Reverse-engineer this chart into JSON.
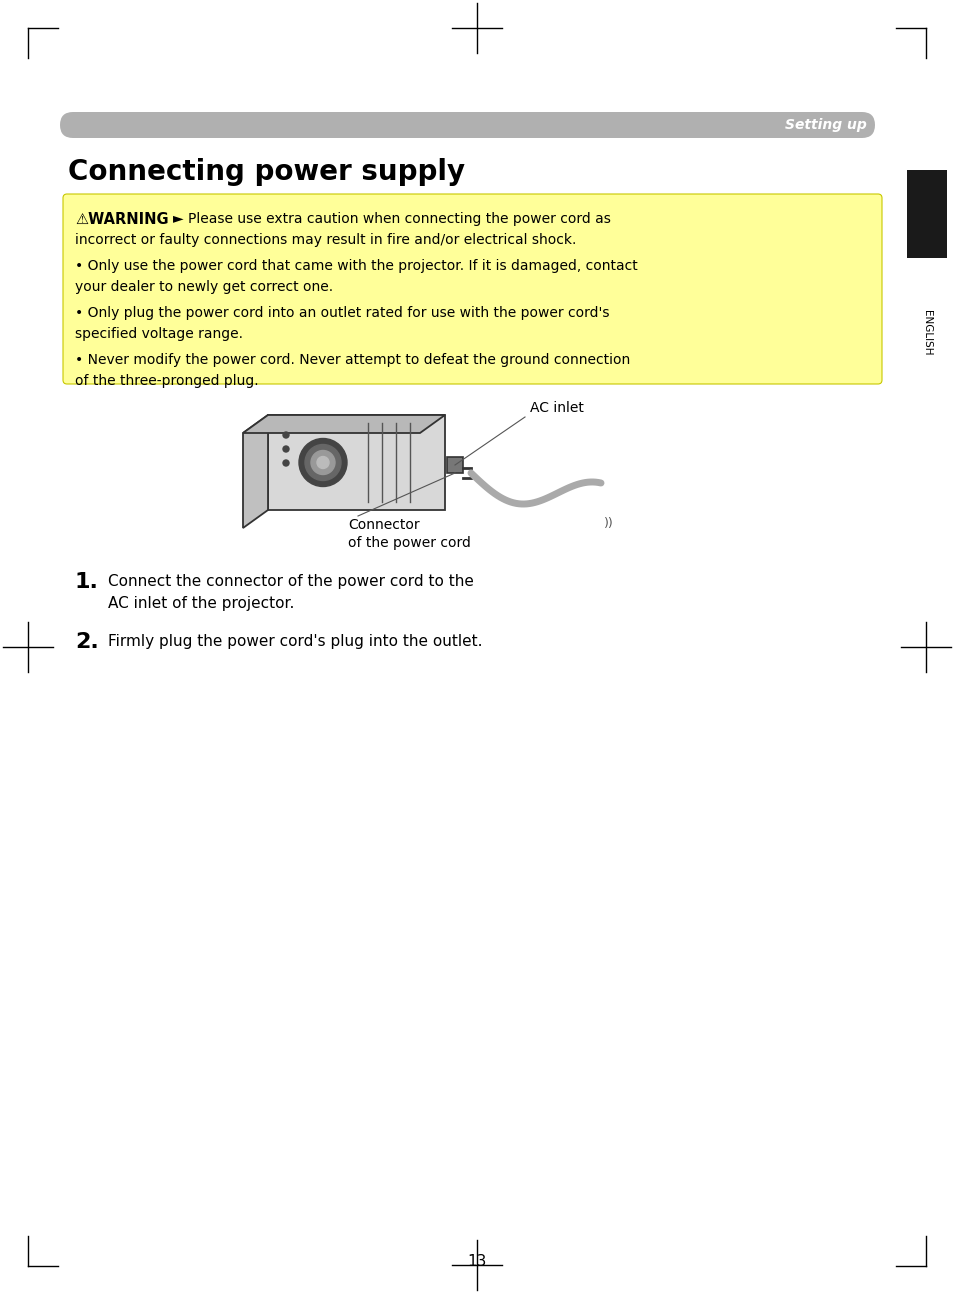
{
  "page_bg": "#ffffff",
  "header_bar_color": "#b0b0b0",
  "header_text": "Setting up",
  "header_text_color": "#ffffff",
  "title": "Connecting power supply",
  "title_color": "#000000",
  "warning_bg": "#ffff99",
  "warning_border": "#cccc00",
  "warning_label": "⚠WARNING",
  "warning_label_color": "#000000",
  "warning_arrow": "►",
  "warning_line1": "Please use extra caution when connecting the power cord as",
  "warning_line2": "incorrect or faulty connections may result in fire and/or electrical shock.",
  "warning_line3": "• Only use the power cord that came with the projector. If it is damaged, contact",
  "warning_line4": "your dealer to newly get correct one.",
  "warning_line5": "• Only plug the power cord into an outlet rated for use with the power cord's",
  "warning_line6": "specified voltage range.",
  "warning_line7": "• Never modify the power cord. Never attempt to defeat the ground connection",
  "warning_line8": "of the three-pronged plug.",
  "step1_num": "1.",
  "step1_text_line1": "Connect the connector of the power cord to the",
  "step1_text_line2": "AC inlet of the projector.",
  "step2_num": "2.",
  "step2_text": "Firmly plug the power cord's plug into the outlet.",
  "ac_inlet_label": "AC inlet",
  "connector_label_line1": "Connector",
  "connector_label_line2": "of the power cord",
  "side_label": "ENGLISH",
  "side_label_color": "#000000",
  "page_number": "13",
  "black_tab_color": "#1a1a1a",
  "corner_mark_color": "#000000"
}
